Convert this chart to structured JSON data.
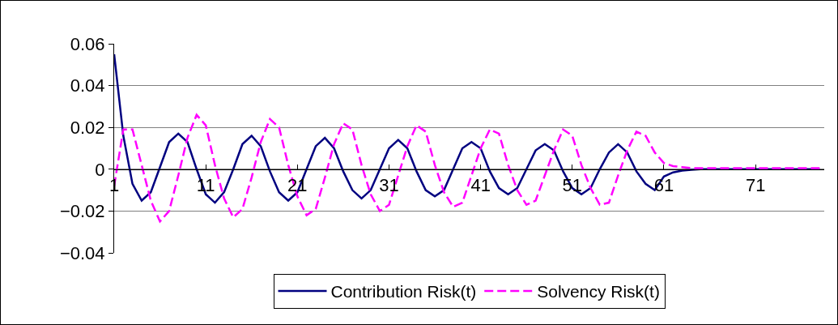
{
  "chart_data": {
    "type": "line",
    "x": [
      1,
      2,
      3,
      4,
      5,
      6,
      7,
      8,
      9,
      10,
      11,
      12,
      13,
      14,
      15,
      16,
      17,
      18,
      19,
      20,
      21,
      22,
      23,
      24,
      25,
      26,
      27,
      28,
      29,
      30,
      31,
      32,
      33,
      34,
      35,
      36,
      37,
      38,
      39,
      40,
      41,
      42,
      43,
      44,
      45,
      46,
      47,
      48,
      49,
      50,
      51,
      52,
      53,
      54,
      55,
      56,
      57,
      58,
      59,
      60,
      61,
      62,
      63,
      64,
      65,
      66,
      67,
      68,
      69,
      70,
      71,
      72,
      73,
      74,
      75,
      76,
      77,
      78
    ],
    "series": [
      {
        "name": "Contribution Risk(t)",
        "color": "#000080",
        "line_style": "solid",
        "values": [
          0.055,
          0.016,
          -0.007,
          -0.015,
          -0.011,
          0.001,
          0.013,
          0.017,
          0.013,
          0.0,
          -0.012,
          -0.016,
          -0.011,
          0.0,
          0.012,
          0.016,
          0.011,
          -0.001,
          -0.011,
          -0.015,
          -0.011,
          0.0,
          0.011,
          0.015,
          0.01,
          -0.001,
          -0.01,
          -0.014,
          -0.01,
          0.0,
          0.01,
          0.014,
          0.01,
          -0.001,
          -0.01,
          -0.013,
          -0.01,
          0.0,
          0.01,
          0.013,
          0.01,
          -0.001,
          -0.009,
          -0.012,
          -0.009,
          0.0,
          0.009,
          0.012,
          0.009,
          -0.001,
          -0.009,
          -0.012,
          -0.009,
          0.0,
          0.008,
          0.012,
          0.008,
          -0.001,
          -0.007,
          -0.01,
          -0.0035,
          -0.0015,
          -0.0007,
          -0.0003,
          0,
          0,
          0,
          0,
          0,
          0,
          0,
          0,
          0,
          0,
          0,
          0,
          0,
          0
        ]
      },
      {
        "name": "Solvency Risk(t)",
        "color": "#ff00ff",
        "line_style": "dashed",
        "values": [
          -0.008,
          0.019,
          0.019,
          0.002,
          -0.015,
          -0.025,
          -0.02,
          -0.003,
          0.015,
          0.026,
          0.021,
          0.002,
          -0.014,
          -0.023,
          -0.019,
          -0.004,
          0.013,
          0.024,
          0.02,
          0.002,
          -0.013,
          -0.022,
          -0.019,
          -0.004,
          0.012,
          0.022,
          0.019,
          0.002,
          -0.012,
          -0.02,
          -0.017,
          -0.003,
          0.011,
          0.021,
          0.018,
          0.002,
          -0.011,
          -0.018,
          -0.016,
          -0.003,
          0.01,
          0.019,
          0.017,
          0.002,
          -0.01,
          -0.017,
          -0.015,
          -0.003,
          0.009,
          0.019,
          0.016,
          0.002,
          -0.009,
          -0.017,
          -0.016,
          -0.003,
          0.009,
          0.018,
          0.016,
          0.008,
          0.003,
          0.0015,
          0.001,
          0.0005,
          0.0005,
          0.0005,
          0.0005,
          0.0005,
          0.0005,
          0.0005,
          0.0005,
          0.0005,
          0.0005,
          0.0005,
          0.0005,
          0.0005,
          0.0005,
          0.0005
        ]
      }
    ],
    "xlim": [
      1,
      78.5
    ],
    "xticks": [
      1,
      11,
      21,
      31,
      41,
      51,
      61,
      71
    ],
    "ylim": [
      -0.04,
      0.06
    ],
    "yticks": [
      {
        "value": -0.04,
        "label": "−0.04"
      },
      {
        "value": -0.02,
        "label": "−0.02"
      },
      0,
      0.02,
      0.04,
      0.06
    ],
    "grid": "y",
    "legend": "bottom",
    "marker": "none"
  }
}
